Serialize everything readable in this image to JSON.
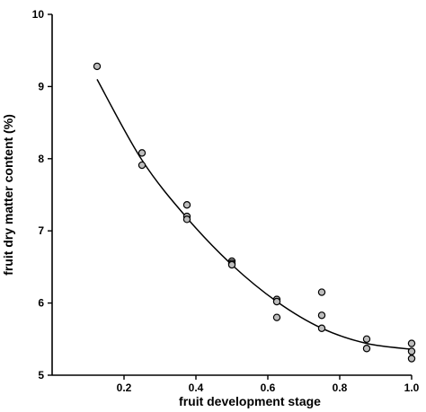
{
  "chart_data": {
    "type": "scatter",
    "title": "",
    "xlabel": "fruit development stage",
    "ylabel": "fruit dry matter content (%)",
    "xlim": [
      0.0,
      1.0
    ],
    "ylim": [
      5,
      10
    ],
    "x_ticks": [
      0.2,
      0.4,
      0.6,
      0.8,
      1.0
    ],
    "x_tick_labels": [
      "0.2",
      "0.4",
      "0.6",
      "0.8",
      "1.0"
    ],
    "y_ticks": [
      5,
      6,
      7,
      8,
      9,
      10
    ],
    "y_tick_labels": [
      "5",
      "6",
      "7",
      "8",
      "9",
      "10"
    ],
    "grid": false,
    "series": [
      {
        "points": [
          [
            0.125,
            9.28
          ],
          [
            0.25,
            8.08
          ],
          [
            0.25,
            7.91
          ],
          [
            0.375,
            7.36
          ],
          [
            0.375,
            7.2
          ],
          [
            0.375,
            7.16
          ],
          [
            0.5,
            6.58
          ],
          [
            0.5,
            6.55
          ],
          [
            0.5,
            6.53
          ],
          [
            0.625,
            6.05
          ],
          [
            0.625,
            6.02
          ],
          [
            0.625,
            5.8
          ],
          [
            0.75,
            6.15
          ],
          [
            0.75,
            5.83
          ],
          [
            0.75,
            5.65
          ],
          [
            0.875,
            5.5
          ],
          [
            0.875,
            5.37
          ],
          [
            1.0,
            5.44
          ],
          [
            1.0,
            5.33
          ],
          [
            1.0,
            5.23
          ]
        ]
      }
    ],
    "fit_curve": {
      "x": [
        0.125,
        0.25,
        0.375,
        0.5,
        0.625,
        0.75,
        0.875,
        1.0
      ],
      "y": [
        9.1,
        7.98,
        7.18,
        6.53,
        6.02,
        5.65,
        5.44,
        5.36
      ]
    }
  }
}
